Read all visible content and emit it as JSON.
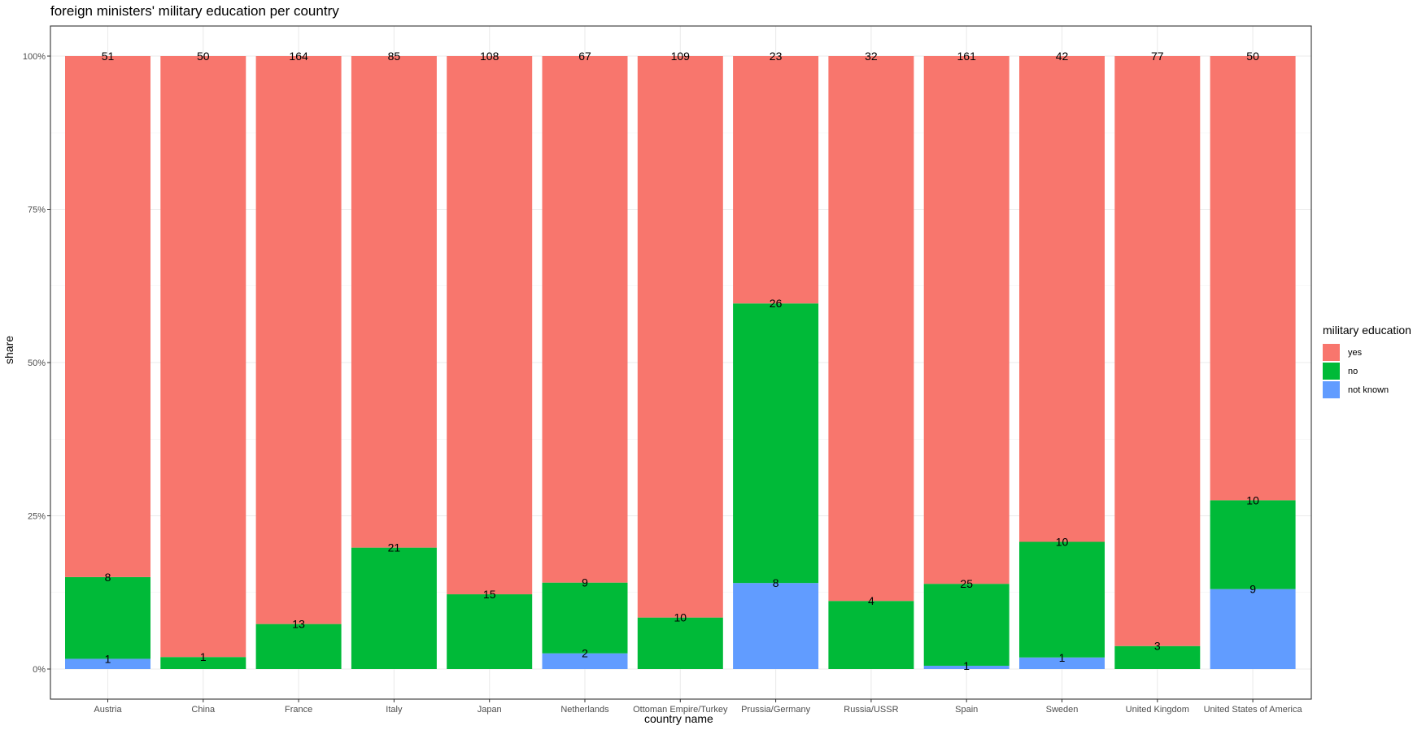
{
  "chart_data": {
    "type": "bar",
    "stacked": "percent",
    "title": "foreign ministers' military education per country",
    "xlabel": "country name",
    "ylabel": "share",
    "ylim": [
      0,
      1
    ],
    "y_ticks": [
      "0%",
      "25%",
      "50%",
      "75%",
      "100%"
    ],
    "categories": [
      "Austria",
      "China",
      "France",
      "Italy",
      "Japan",
      "Netherlands",
      "Ottoman Empire/Turkey",
      "Prussia/Germany",
      "Russia/USSR",
      "Spain",
      "Sweden",
      "United Kingdom",
      "United States of America"
    ],
    "legend_title": "military education",
    "series": [
      {
        "name": "yes",
        "color": "#F8766D",
        "values": [
          51,
          50,
          164,
          85,
          108,
          67,
          109,
          23,
          32,
          161,
          42,
          77,
          50
        ]
      },
      {
        "name": "no",
        "color": "#00BA38",
        "values": [
          8,
          1,
          13,
          21,
          15,
          9,
          10,
          26,
          4,
          25,
          10,
          3,
          10
        ]
      },
      {
        "name": "not known",
        "color": "#619CFF",
        "values": [
          1,
          0,
          0,
          0,
          0,
          2,
          0,
          8,
          0,
          1,
          1,
          0,
          9
        ]
      }
    ],
    "grid": true,
    "legend_position": "right"
  }
}
